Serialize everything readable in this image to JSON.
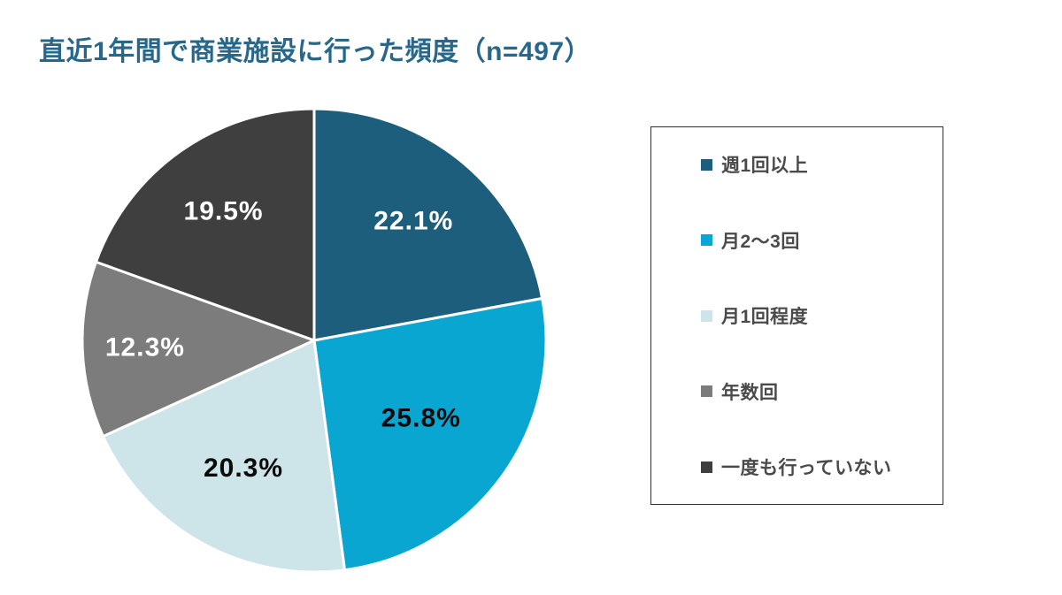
{
  "page": {
    "title": "直近1年間で商業施設に行った頻度（n=497）"
  },
  "chart_data": {
    "type": "pie",
    "title": "直近1年間で商業施設に行った頻度",
    "sample_size_label": "n=497",
    "categories": [
      "週1回以上",
      "月2〜3回",
      "月1回程度",
      "年数回",
      "一度も行っていない"
    ],
    "values": [
      22.1,
      25.8,
      20.3,
      12.3,
      19.5
    ],
    "unit": "%",
    "slice_labels": [
      "22.1%",
      "25.8%",
      "20.3%",
      "12.3%",
      "19.5%"
    ],
    "colors": [
      "#1D5E7D",
      "#0AA6D2",
      "#CDE4E9",
      "#7C7C7C",
      "#3F3F3F"
    ],
    "label_text_colors": [
      "#FFFFFF",
      "#0B0B0B",
      "#0B0B0B",
      "#FFFFFF",
      "#FFFFFF"
    ],
    "start_angle_deg": -90,
    "direction": "clockwise",
    "slice_border_color": "#FFFFFF",
    "legend_position": "right",
    "title_color": "#27688A"
  },
  "legend": {
    "items": [
      {
        "label": "週1回以上",
        "color": "#1D5E7D"
      },
      {
        "label": "月2〜3回",
        "color": "#0AA6D2"
      },
      {
        "label": "月1回程度",
        "color": "#CDE4E9"
      },
      {
        "label": "年数回",
        "color": "#7C7C7C"
      },
      {
        "label": "一度も行っていない",
        "color": "#3F3F3F"
      }
    ]
  }
}
